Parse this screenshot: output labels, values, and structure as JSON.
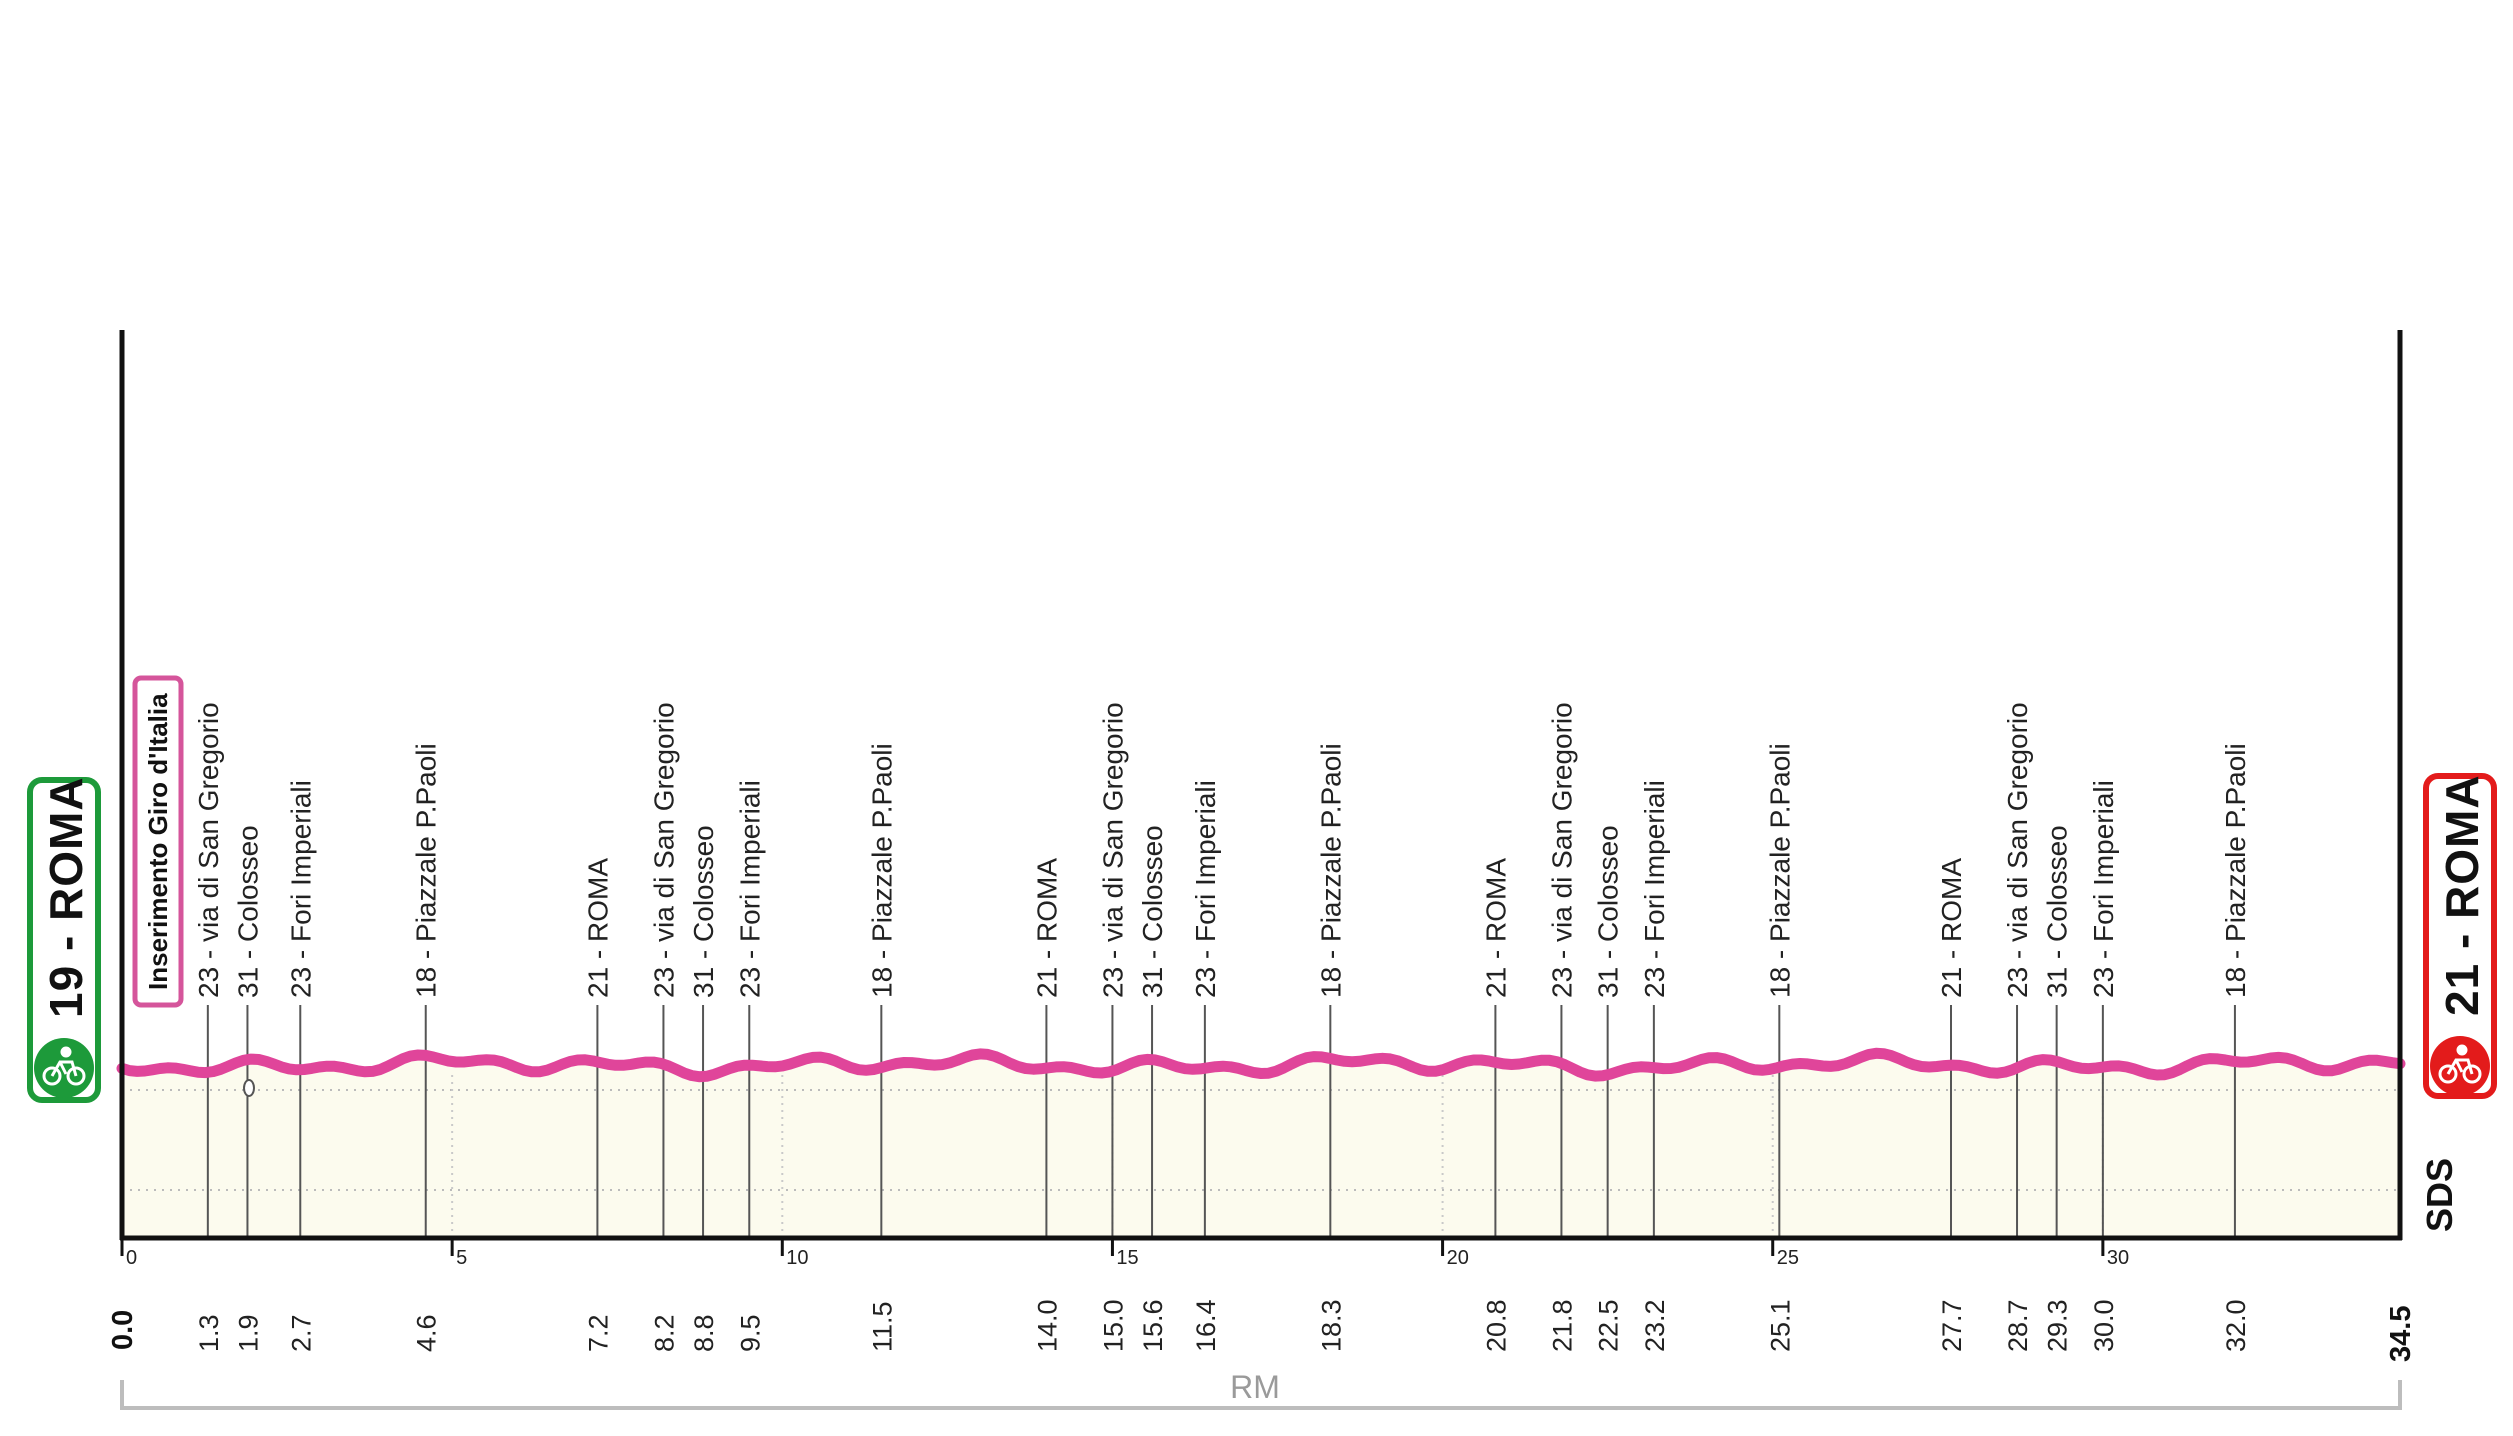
{
  "colors": {
    "profile": "#e0459a",
    "fill": "#fcfbee",
    "start": "#1d9a3a",
    "finish": "#e31b1b",
    "banner_border": "#d5559b",
    "axis": "#111111"
  },
  "start_badge": {
    "text": "19 - ROMA",
    "icon": "cyclist-icon"
  },
  "finish_badge": {
    "text": "21 - ROMA",
    "icon": "cyclist-icon"
  },
  "banner": {
    "text": "Inserimento Giro d'Italia"
  },
  "logo": {
    "text": "SDS"
  },
  "chart_data": {
    "type": "area",
    "title": "",
    "xlabel": "",
    "ylabel": "",
    "xlim": [
      0,
      34.5
    ],
    "x_ticks": [
      {
        "value": 0,
        "label": "0"
      },
      {
        "value": 5,
        "label": "5"
      },
      {
        "value": 10,
        "label": "10"
      },
      {
        "value": 15,
        "label": "15"
      },
      {
        "value": 20,
        "label": "20"
      },
      {
        "value": 25,
        "label": "25"
      },
      {
        "value": 30,
        "label": "30"
      }
    ],
    "region_label": "RM",
    "start_km": "0.0",
    "finish_km": "34.5",
    "waypoints": [
      {
        "km": 1.3,
        "km_label": "1.3",
        "label": "23 - via di San Gregorio"
      },
      {
        "km": 1.9,
        "km_label": "1.9",
        "label": "31 - Colosseo"
      },
      {
        "km": 2.7,
        "km_label": "2.7",
        "label": "23 - Fori Imperiali"
      },
      {
        "km": 4.6,
        "km_label": "4.6",
        "label": "18 - Piazzale P.Paoli"
      },
      {
        "km": 7.2,
        "km_label": "7.2",
        "label": "21 - ROMA"
      },
      {
        "km": 8.2,
        "km_label": "8.2",
        "label": "23 - via di San Gregorio"
      },
      {
        "km": 8.8,
        "km_label": "8.8",
        "label": "31 - Colosseo"
      },
      {
        "km": 9.5,
        "km_label": "9.5",
        "label": "23 - Fori Imperiali"
      },
      {
        "km": 11.5,
        "km_label": "11.5",
        "label": "18 - Piazzale P.Paoli"
      },
      {
        "km": 14.0,
        "km_label": "14.0",
        "label": "21 - ROMA"
      },
      {
        "km": 15.0,
        "km_label": "15.0",
        "label": "23 - via di San Gregorio"
      },
      {
        "km": 15.6,
        "km_label": "15.6",
        "label": "31 - Colosseo"
      },
      {
        "km": 16.4,
        "km_label": "16.4",
        "label": "23 - Fori Imperiali"
      },
      {
        "km": 18.3,
        "km_label": "18.3",
        "label": "18 - Piazzale P.Paoli"
      },
      {
        "km": 20.8,
        "km_label": "20.8",
        "label": "21 - ROMA"
      },
      {
        "km": 21.8,
        "km_label": "21.8",
        "label": "23 - via di San Gregorio"
      },
      {
        "km": 22.5,
        "km_label": "22.5",
        "label": "31 - Colosseo"
      },
      {
        "km": 23.2,
        "km_label": "23.2",
        "label": "23 - Fori Imperiali"
      },
      {
        "km": 25.1,
        "km_label": "25.1",
        "label": "18 - Piazzale P.Paoli"
      },
      {
        "km": 27.7,
        "km_label": "27.7",
        "label": "21 - ROMA"
      },
      {
        "km": 28.7,
        "km_label": "28.7",
        "label": "23 - via di San Gregorio"
      },
      {
        "km": 29.3,
        "km_label": "29.3",
        "label": "31 - Colosseo"
      },
      {
        "km": 30.0,
        "km_label": "30.0",
        "label": "23 - Fori Imperiali"
      },
      {
        "km": 32.0,
        "km_label": "32.0",
        "label": "18 - Piazzale P.Paoli"
      }
    ]
  }
}
